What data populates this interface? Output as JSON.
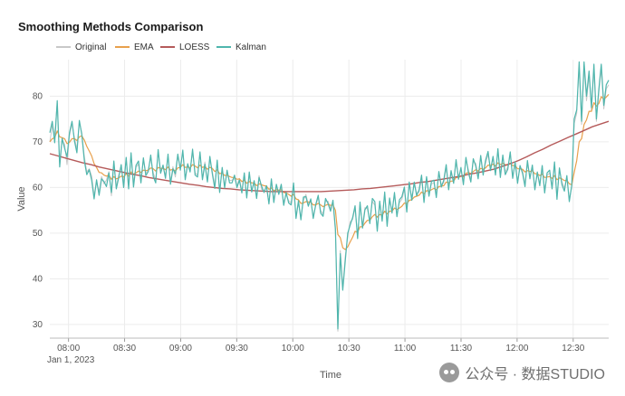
{
  "watermark": {
    "text": "公众号 · 数据STUDIO",
    "icon": "wechat-icon"
  },
  "chart_data": {
    "type": "line",
    "title": "Smoothing Methods Comparison",
    "xlabel": "Time",
    "ylabel": "Value",
    "x_start": "07:50",
    "x_ticks": [
      {
        "label": "08:00",
        "sublabel": "Jan 1, 2023",
        "value": 10
      },
      {
        "label": "08:30",
        "value": 40
      },
      {
        "label": "09:00",
        "value": 70
      },
      {
        "label": "09:30",
        "value": 100
      },
      {
        "label": "10:00",
        "value": 130
      },
      {
        "label": "10:30",
        "value": 160
      },
      {
        "label": "11:00",
        "value": 190
      },
      {
        "label": "11:30",
        "value": 220
      },
      {
        "label": "12:00",
        "value": 250
      },
      {
        "label": "12:30",
        "value": 280
      }
    ],
    "xlim": [
      0,
      299
    ],
    "ylim": [
      27,
      88
    ],
    "y_ticks": [
      30,
      40,
      50,
      60,
      70,
      80
    ],
    "grid": true,
    "legend_position": "top-left",
    "series": [
      {
        "name": "Original",
        "color": "#c8c8c8",
        "values": [
          70.0,
          73.5,
          71.6,
          78.5,
          66.0,
          70.2,
          69.5,
          65.0,
          71.3,
          74.0,
          70.8,
          68.5,
          74.2,
          72.0,
          66.8,
          63.4,
          64.1,
          62.5,
          58.3,
          61.0,
          59.2,
          62.4,
          60.8,
          61.6,
          63.5,
          58.2,
          65.0,
          60.2,
          62.8,
          64.4,
          61.1,
          66.1,
          60.4,
          67.0,
          61.0,
          64.4,
          65.1,
          61.9,
          66.0,
          63.1,
          64.0,
          66.4,
          63.2,
          61.6,
          67.7,
          63.7,
          64.4,
          62.6,
          66.7,
          61.1,
          64.6,
          62.3,
          66.8,
          64.5,
          67.7,
          62.2,
          64.8,
          63.9,
          67.7,
          63.2,
          62.7,
          67.3,
          62.1,
          65.6,
          61.6,
          66.1,
          63.5,
          60.4,
          65.5,
          59.3,
          64.0,
          60.4,
          63.1,
          61.5,
          61.6,
          62.0,
          60.4,
          62.0,
          59.2,
          62.5,
          58.3,
          62.7,
          59.5,
          61.0,
          58.1,
          62.6,
          59.6,
          59.3,
          60.1,
          56.7,
          61.3,
          57.1,
          60.2,
          58.9,
          60.1,
          56.7,
          58.4,
          57.1,
          56.6,
          60.4,
          53.7,
          56.6,
          53.4,
          57.2,
          58.5,
          56.3,
          57.1,
          53.8,
          56.0,
          57.8,
          54.9,
          54.2,
          57.0,
          57.0,
          55.4,
          56.6,
          50.3,
          28.5,
          46.2,
          38.1,
          45.0,
          49.3,
          52.5,
          53.0,
          55.5,
          49.5,
          56.2,
          51.8,
          55.6,
          55.3,
          52.7,
          57.0,
          56.1,
          51.0,
          56.4,
          53.3,
          58.6,
          52.0,
          57.1,
          55.0,
          58.4,
          54.1,
          56.7,
          57.4,
          59.6,
          55.2,
          60.7,
          57.8,
          60.6,
          58.8,
          59.0,
          62.0,
          57.3,
          61.8,
          58.6,
          60.8,
          61.0,
          58.4,
          62.9,
          60.7,
          61.0,
          64.4,
          60.1,
          63.1,
          61.5,
          65.5,
          62.4,
          63.8,
          61.3,
          66.1,
          63.9,
          61.8,
          65.7,
          65.3,
          62.4,
          66.5,
          63.2,
          65.4,
          67.2,
          64.3,
          66.2,
          63.3,
          67.9,
          62.9,
          66.5,
          63.4,
          64.5,
          67.1,
          62.6,
          65.0,
          61.5,
          64.2,
          63.7,
          60.8,
          65.2,
          62.5,
          64.3,
          60.2,
          62.9,
          61.0,
          64.1,
          59.5,
          62.6,
          63.2,
          60.3,
          65.0,
          58.1,
          63.7,
          61.2,
          59.9,
          62.0,
          57.6,
          60.0,
          74.0,
          76.3,
          86.5,
          73.8,
          86.5,
          79.0,
          84.5,
          76.8,
          86.0,
          74.5,
          80.8,
          86.0,
          77.2,
          81.6,
          82.5
        ]
      },
      {
        "name": "EMA",
        "color": "#e8a04c",
        "values": [
          70.0,
          70.7,
          70.9,
          72.4,
          71.1,
          70.9,
          70.7,
          69.6,
          69.9,
          70.7,
          70.7,
          70.3,
          71.1,
          71.3,
          70.4,
          69.0,
          68.0,
          66.9,
          65.2,
          64.4,
          63.3,
          63.2,
          62.7,
          62.5,
          62.7,
          61.8,
          62.4,
          61.9,
          62.1,
          62.5,
          62.3,
          63.0,
          62.5,
          63.4,
          62.9,
          63.2,
          63.6,
          63.3,
          63.8,
          63.7,
          63.8,
          64.3,
          64.1,
          63.6,
          64.4,
          64.2,
          64.2,
          63.9,
          64.5,
          63.8,
          64.0,
          63.6,
          64.3,
          64.4,
          65.0,
          64.4,
          64.5,
          64.3,
          65.0,
          64.7,
          64.3,
          64.9,
          64.4,
          64.6,
          64.0,
          64.4,
          64.2,
          63.5,
          63.9,
          63.0,
          63.2,
          62.6,
          62.7,
          62.4,
          62.2,
          62.2,
          61.8,
          61.9,
          61.3,
          61.6,
          60.9,
          61.3,
          61.0,
          61.0,
          60.4,
          60.8,
          60.6,
          60.4,
          60.3,
          59.6,
          59.9,
          59.3,
          59.5,
          59.4,
          59.5,
          58.9,
          58.8,
          58.5,
          58.1,
          58.5,
          57.5,
          57.3,
          56.5,
          56.6,
          56.9,
          56.8,
          56.8,
          56.2,
          56.2,
          56.5,
          56.2,
          55.8,
          56.1,
          56.3,
          56.1,
          56.2,
          55.0,
          49.7,
          49.0,
          46.8,
          46.4,
          47.0,
          48.1,
          49.1,
          50.4,
          50.2,
          51.4,
          51.4,
          52.2,
          52.8,
          52.8,
          53.6,
          54.1,
          53.5,
          54.1,
          53.9,
          54.8,
          54.2,
          54.8,
          54.8,
          55.5,
          55.2,
          55.5,
          55.9,
          56.6,
          56.4,
          57.2,
          57.3,
          57.9,
          58.1,
          58.3,
          59.0,
          58.6,
          59.3,
          59.2,
          59.5,
          59.8,
          59.5,
          60.2,
          60.3,
          60.4,
          61.2,
          61.0,
          61.4,
          61.4,
          62.2,
          62.2,
          62.5,
          62.3,
          63.1,
          63.3,
          63.0,
          63.5,
          63.9,
          63.6,
          64.2,
          64.0,
          64.3,
          64.9,
          64.8,
          65.1,
          64.7,
          65.4,
          65.0,
          65.3,
          65.0,
          64.9,
          65.3,
          64.8,
          64.8,
          64.1,
          64.1,
          64.0,
          63.4,
          63.7,
          63.5,
          63.7,
          63.0,
          63.0,
          62.6,
          62.9,
          62.2,
          62.3,
          62.4,
          62.0,
          62.6,
          61.7,
          62.1,
          61.9,
          61.5,
          61.6,
          60.8,
          60.6,
          63.3,
          65.9,
          70.0,
          70.7,
          73.8,
          74.8,
          76.7,
          76.7,
          78.6,
          77.8,
          78.4,
          79.9,
          79.3,
          79.8,
          80.4
        ]
      },
      {
        "name": "LOESS",
        "color": "#b55a5a",
        "values": [
          67.4,
          66.9,
          66.4,
          65.9,
          65.4,
          65.0,
          64.5,
          64.1,
          63.7,
          63.3,
          62.9,
          62.6,
          62.2,
          61.9,
          61.6,
          61.3,
          61.0,
          60.7,
          60.5,
          60.2,
          60.0,
          59.8,
          59.7,
          59.5,
          59.4,
          59.3,
          59.2,
          59.1,
          59.1,
          59.1,
          59.1,
          59.1,
          59.1,
          59.1,
          59.2,
          59.3,
          59.4,
          59.5,
          59.7,
          59.8,
          60.0,
          60.2,
          60.4,
          60.6,
          60.8,
          61.1,
          61.3,
          61.6,
          61.9,
          62.2,
          62.5,
          62.9,
          63.2,
          63.6,
          64.0,
          64.6,
          65.2,
          65.9,
          66.7,
          67.6,
          68.4,
          69.3,
          70.1,
          70.9,
          71.7,
          72.5,
          73.3,
          73.9,
          74.5
        ]
      },
      {
        "name": "Kalman",
        "color": "#4fb6ad",
        "values": [
          72.0,
          74.5,
          69.8,
          79.0,
          64.5,
          70.8,
          68.6,
          66.7,
          72.0,
          74.5,
          70.2,
          67.6,
          74.7,
          71.6,
          65.9,
          62.8,
          63.9,
          61.6,
          57.5,
          61.7,
          58.3,
          61.9,
          61.3,
          60.2,
          63.2,
          58.9,
          65.8,
          59.7,
          62.2,
          65.0,
          60.0,
          66.6,
          59.7,
          67.6,
          60.1,
          64.8,
          65.8,
          61.0,
          66.5,
          62.6,
          63.5,
          67.1,
          62.4,
          61.0,
          68.3,
          63.1,
          64.9,
          62.0,
          67.3,
          60.7,
          64.1,
          63.0,
          67.3,
          63.8,
          68.2,
          61.7,
          65.2,
          63.4,
          68.4,
          62.7,
          62.3,
          67.8,
          61.7,
          65.1,
          61.2,
          66.8,
          63.0,
          59.8,
          66.0,
          58.9,
          64.4,
          59.9,
          63.8,
          61.0,
          61.0,
          62.7,
          60.0,
          61.6,
          58.8,
          63.2,
          57.7,
          63.4,
          59.0,
          61.5,
          57.6,
          62.2,
          60.3,
          58.9,
          60.4,
          56.4,
          61.9,
          56.7,
          60.7,
          58.5,
          60.7,
          56.1,
          58.9,
          56.6,
          56.2,
          61.0,
          53.2,
          57.1,
          52.9,
          57.9,
          58.0,
          55.9,
          57.5,
          53.2,
          56.3,
          58.3,
          54.4,
          53.7,
          57.6,
          56.5,
          54.8,
          57.2,
          51.0,
          29.0,
          45.5,
          37.5,
          44.0,
          50.0,
          51.8,
          53.4,
          56.0,
          48.8,
          56.8,
          51.1,
          55.1,
          56.0,
          52.1,
          57.6,
          56.9,
          50.4,
          57.0,
          52.6,
          59.0,
          51.5,
          57.7,
          54.4,
          58.9,
          53.6,
          57.3,
          58.0,
          60.1,
          54.6,
          61.2,
          57.2,
          61.2,
          58.2,
          59.5,
          62.7,
          56.7,
          62.4,
          58.1,
          61.3,
          61.6,
          57.8,
          63.5,
          60.1,
          61.6,
          65.0,
          59.5,
          63.7,
          60.9,
          66.1,
          61.8,
          64.4,
          60.6,
          66.6,
          63.3,
          61.2,
          66.3,
          64.7,
          61.9,
          67.0,
          62.7,
          66.0,
          67.9,
          63.7,
          66.8,
          62.7,
          68.5,
          62.2,
          67.1,
          62.8,
          64.0,
          67.8,
          62.0,
          65.6,
          60.9,
          64.8,
          63.1,
          60.2,
          65.9,
          61.9,
          64.9,
          59.5,
          63.4,
          60.4,
          64.8,
          58.8,
          63.2,
          63.8,
          59.7,
          65.6,
          57.4,
          64.3,
          60.6,
          59.2,
          62.6,
          56.9,
          60.5,
          75.0,
          77.0,
          87.5,
          74.5,
          87.5,
          80.0,
          85.5,
          77.5,
          87.0,
          75.0,
          81.5,
          87.0,
          78.0,
          82.5,
          83.5
        ]
      }
    ]
  }
}
